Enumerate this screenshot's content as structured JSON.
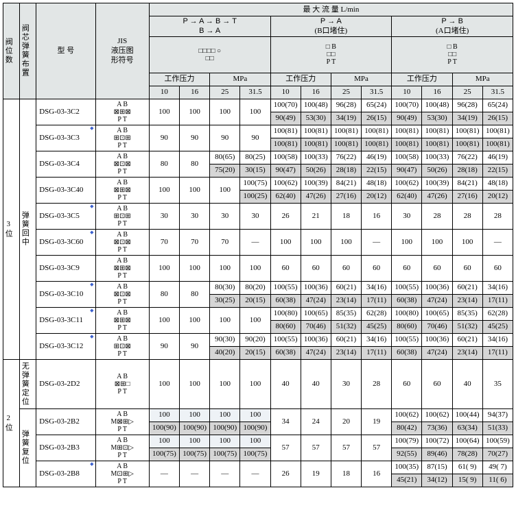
{
  "header": {
    "flow_title": "最 大 流 量    L/min",
    "c1": "阀位数",
    "c2": "阀芯弹簧布置",
    "c3": "型  号",
    "c4": "JIS\n液压图\n形符号",
    "pressure": "工作压力",
    "pressure_unit": "MPa",
    "cols": [
      "10",
      "16",
      "25",
      "31.5"
    ],
    "pathA": {
      "top": "P →  A →  B → T",
      "bot": "  B →  A"
    },
    "pathB": {
      "l1": "P  →  A",
      "l2": "(B口堵住)"
    },
    "pathC": {
      "l1": "P  →  B",
      "l2": "(A口堵住)"
    },
    "diagA1": "□□□□  ○",
    "diagA2": "□□",
    "diagB": "□ B\n□□\nP T",
    "diagC": "□ B\n□□\nP T"
  },
  "g3": {
    "pos": "3位",
    "spring": "弹簧回中",
    "rows": [
      {
        "m": "DSG-03-3C2",
        "sym": "⊠⊞⊠",
        "d1": [
          "100",
          "100",
          "100",
          "100"
        ],
        "d2": [
          [
            "100(70)",
            "100(48)",
            "96(28)",
            "65(24)"
          ],
          [
            "90(49)",
            "53(30)",
            "34(19)",
            "26(15)"
          ]
        ],
        "d3": [
          [
            "100(70)",
            "100(48)",
            "96(28)",
            "65(24)"
          ],
          [
            "90(49)",
            "53(30)",
            "34(19)",
            "26(15)"
          ]
        ]
      },
      {
        "m": "DSG-03-3C3",
        "star": true,
        "sym": "⊞⊡⊞",
        "d1": [
          "90",
          "90",
          "90",
          "90"
        ],
        "d2": [
          [
            "100(81)",
            "100(81)",
            "100(81)",
            "100(81)"
          ],
          [
            "100(81)",
            "100(81)",
            "100(81)",
            "100(81)"
          ]
        ],
        "d3": [
          [
            "100(81)",
            "100(81)",
            "100(81)",
            "100(81)"
          ],
          [
            "100(81)",
            "100(81)",
            "100(81)",
            "100(81)"
          ]
        ]
      },
      {
        "m": "DSG-03-3C4",
        "sym": "⊠⊡⊠",
        "d1s": [
          [
            "80",
            "80",
            "80(65)",
            "80(25)"
          ],
          [
            "",
            "",
            "75(20)",
            "30(15)"
          ]
        ],
        "d2": [
          [
            "100(58)",
            "100(33)",
            "76(22)",
            "46(19)"
          ],
          [
            "90(47)",
            "50(26)",
            "28(18)",
            "22(15)"
          ]
        ],
        "d3": [
          [
            "100(58)",
            "100(33)",
            "76(22)",
            "46(19)"
          ],
          [
            "90(47)",
            "50(26)",
            "28(18)",
            "22(15)"
          ]
        ]
      },
      {
        "m": "DSG-03-3C40",
        "sym": "⊠⊞⊠",
        "d1s": [
          [
            "100",
            "100",
            "100",
            "100(75)"
          ],
          [
            "",
            "",
            "",
            "100(25)"
          ]
        ],
        "d2": [
          [
            "100(62)",
            "100(39)",
            "84(21)",
            "48(18)"
          ],
          [
            "62(40)",
            "47(26)",
            "27(16)",
            "20(12)"
          ]
        ],
        "d3": [
          [
            "100(62)",
            "100(39)",
            "84(21)",
            "48(18)"
          ],
          [
            "62(40)",
            "47(26)",
            "27(16)",
            "20(12)"
          ]
        ]
      },
      {
        "m": "DSG-03-3C5",
        "star": true,
        "sym": "⊞⊡⊞",
        "d1": [
          "30",
          "30",
          "30",
          "30"
        ],
        "d2s": [
          "26",
          "21",
          "18",
          "16"
        ],
        "d3s": [
          "30",
          "28",
          "28",
          "28"
        ]
      },
      {
        "m": "DSG-03-3C60",
        "star": true,
        "sym": "⊠⊡⊠",
        "d1": [
          "70",
          "70",
          "70",
          "—"
        ],
        "d2s": [
          "100",
          "100",
          "100",
          "—"
        ],
        "d3s": [
          "100",
          "100",
          "100",
          "—"
        ]
      },
      {
        "m": "DSG-03-3C9",
        "sym": "⊠⊞⊠",
        "d1": [
          "100",
          "100",
          "100",
          "100"
        ],
        "d2s": [
          "60",
          "60",
          "60",
          "60"
        ],
        "d3s": [
          "60",
          "60",
          "60",
          "60"
        ]
      },
      {
        "m": "DSG-03-3C10",
        "star": true,
        "sym": "⊠⊡⊠",
        "d1s": [
          [
            "80",
            "80",
            "80(30)",
            "80(20)"
          ],
          [
            "",
            "",
            "30(25)",
            "20(15)"
          ]
        ],
        "d2": [
          [
            "100(55)",
            "100(36)",
            "60(21)",
            "34(16)"
          ],
          [
            "60(38)",
            "47(24)",
            "23(14)",
            "17(11)"
          ]
        ],
        "d3": [
          [
            "100(55)",
            "100(36)",
            "60(21)",
            "34(16)"
          ],
          [
            "60(38)",
            "47(24)",
            "23(14)",
            "17(11)"
          ]
        ]
      },
      {
        "m": "DSG-03-3C11",
        "star": true,
        "sym": "⊠⊞⊠",
        "d1": [
          "100",
          "100",
          "100",
          "100"
        ],
        "d2": [
          [
            "100(80)",
            "100(65)",
            "85(35)",
            "62(28)"
          ],
          [
            "80(60)",
            "70(46)",
            "51(32)",
            "45(25)"
          ]
        ],
        "d3": [
          [
            "100(80)",
            "100(65)",
            "85(35)",
            "62(28)"
          ],
          [
            "80(60)",
            "70(46)",
            "51(32)",
            "45(25)"
          ]
        ]
      },
      {
        "m": "DSG-03-3C12",
        "star": true,
        "sym": "⊞⊡⊠",
        "d1s": [
          [
            "90",
            "90",
            "90(30)",
            "90(20)"
          ],
          [
            "",
            "",
            "40(20)",
            "20(15)"
          ]
        ],
        "d2": [
          [
            "100(55)",
            "100(36)",
            "60(21)",
            "34(16)"
          ],
          [
            "60(38)",
            "47(24)",
            "23(14)",
            "17(11)"
          ]
        ],
        "d3": [
          [
            "100(55)",
            "100(36)",
            "60(21)",
            "34(16)"
          ],
          [
            "60(38)",
            "47(24)",
            "23(14)",
            "17(11)"
          ]
        ]
      }
    ]
  },
  "g2": {
    "pos": "2位",
    "spring1": "无弹簧定位",
    "spring2": "弹簧复位",
    "r_nospr": {
      "m": "DSG-03-2D2",
      "sym": "⊠⊞□",
      "d1": [
        "100",
        "100",
        "100",
        "100"
      ],
      "d2s": [
        "40",
        "40",
        "30",
        "28"
      ],
      "d3s": [
        "60",
        "60",
        "40",
        "35"
      ]
    },
    "rows2": [
      {
        "m": "DSG-03-2B2",
        "sym": "M⊠⊞▷",
        "d1": [
          [
            "100",
            "100",
            "100",
            "100"
          ],
          [
            "100(90)",
            "100(90)",
            "100(90)",
            "100(90)"
          ]
        ],
        "d2s": [
          "34",
          "24",
          "20",
          "19"
        ],
        "d3": [
          [
            "100(62)",
            "100(62)",
            "100(44)",
            "94(37)"
          ],
          [
            "80(42)",
            "73(36)",
            "63(34)",
            "51(33)"
          ]
        ]
      },
      {
        "m": "DSG-03-2B3",
        "sym": "M⊞⊡▷",
        "d1": [
          [
            "100",
            "100",
            "100",
            "100"
          ],
          [
            "100(75)",
            "100(75)",
            "100(75)",
            "100(75)"
          ]
        ],
        "d2s": [
          "57",
          "57",
          "57",
          "57"
        ],
        "d3": [
          [
            "100(79)",
            "100(72)",
            "100(64)",
            "100(59)"
          ],
          [
            "92(55)",
            "89(46)",
            "78(28)",
            "70(27)"
          ]
        ]
      },
      {
        "m": "DSG-03-2B8",
        "star": true,
        "sym": "M⊡⊞▷",
        "d1d": [
          "—",
          "—",
          "—",
          "—"
        ],
        "d2s": [
          "26",
          "19",
          "18",
          "16"
        ],
        "d3": [
          [
            "100(35)",
            "87(15)",
            "61( 9)",
            "49( 7)"
          ],
          [
            "45(21)",
            "34(12)",
            "15( 9)",
            "11( 6)"
          ]
        ]
      }
    ]
  }
}
